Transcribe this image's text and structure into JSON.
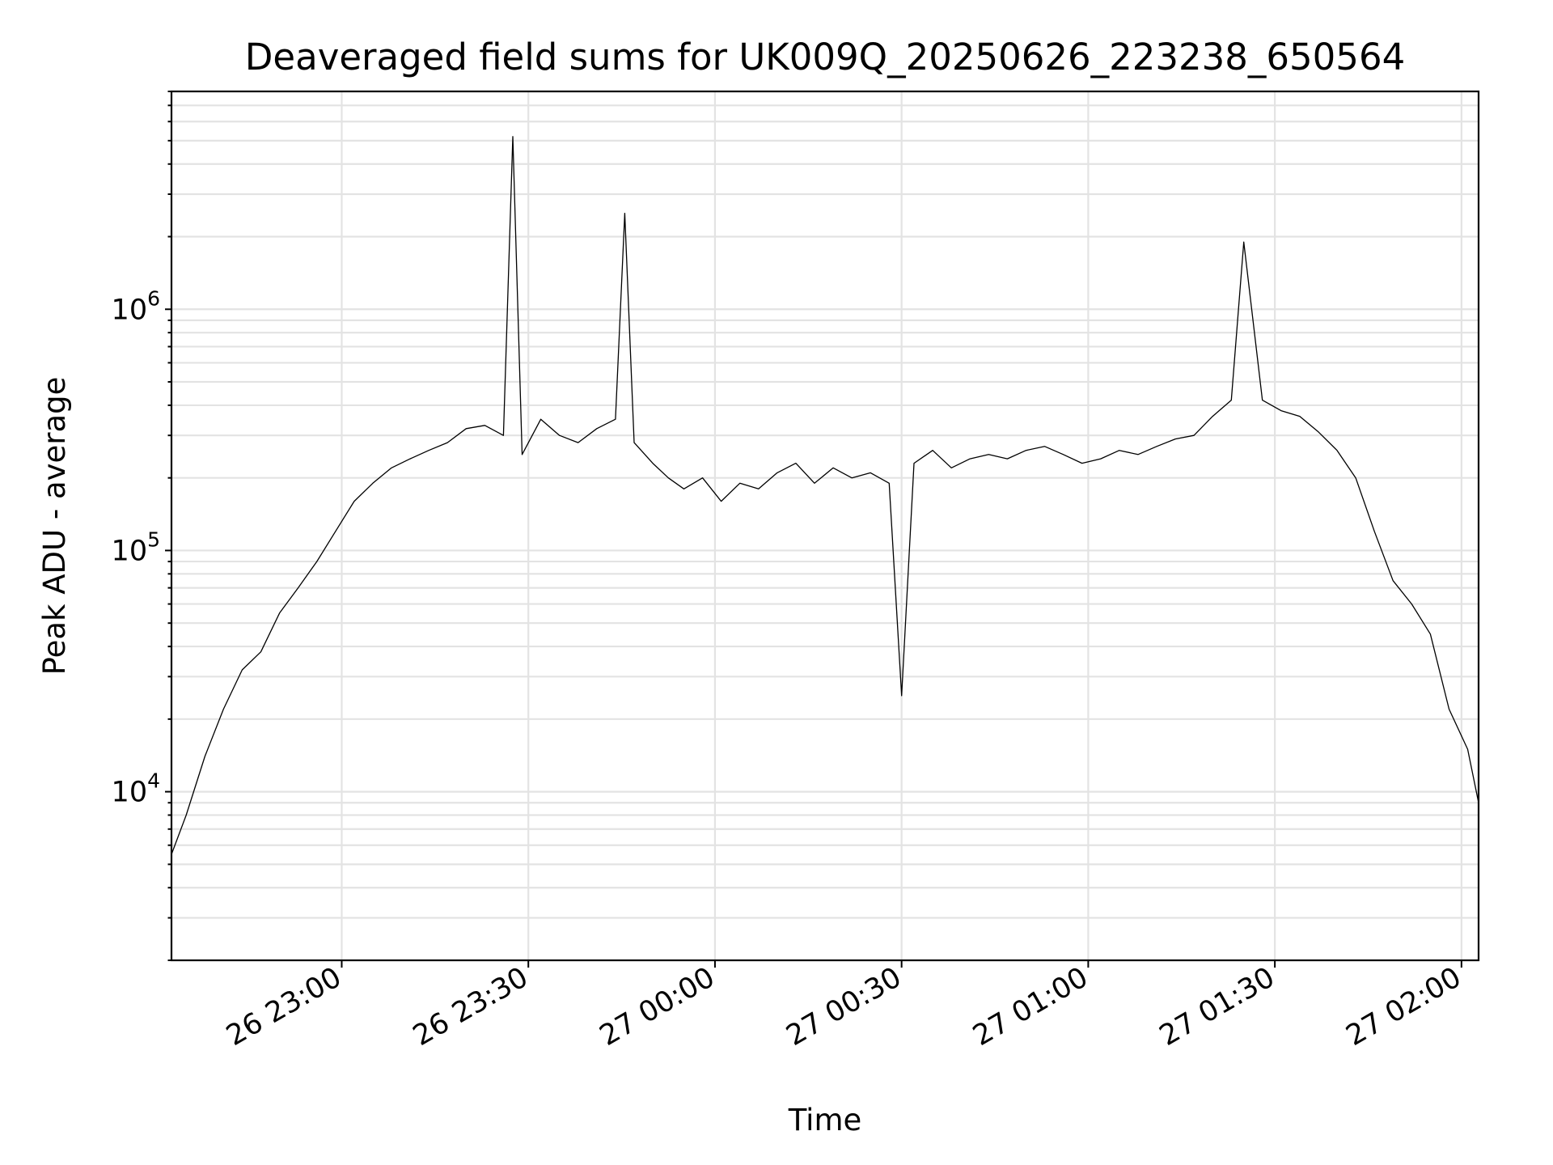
{
  "chart_data": {
    "type": "line",
    "title": "Deaveraged field sums for UK009Q_20250626_223238_650564",
    "xlabel": "Time",
    "ylabel": "Peak ADU - average",
    "xscale": "time",
    "yscale": "log",
    "xlim": [
      "2025-06-26 22:32:38",
      "2025-06-27 02:02:45"
    ],
    "ylim": [
      2000,
      8000000
    ],
    "grid": true,
    "x_ticks": [
      {
        "value": "2025-06-26 23:00",
        "label": "26 23:00"
      },
      {
        "value": "2025-06-26 23:30",
        "label": "26 23:30"
      },
      {
        "value": "2025-06-27 00:00",
        "label": "27 00:00"
      },
      {
        "value": "2025-06-27 00:30",
        "label": "27 00:30"
      },
      {
        "value": "2025-06-27 01:00",
        "label": "27 01:00"
      },
      {
        "value": "2025-06-27 01:30",
        "label": "27 01:30"
      },
      {
        "value": "2025-06-27 02:00",
        "label": "27 02:00"
      }
    ],
    "y_ticks": [
      {
        "value": 10000,
        "base": "10",
        "exp": "4"
      },
      {
        "value": 100000,
        "base": "10",
        "exp": "5"
      },
      {
        "value": 1000000,
        "base": "10",
        "exp": "6"
      }
    ],
    "series_color": "#000000",
    "series": [
      {
        "x": [
          "2025-06-26 22:32:38",
          "2025-06-26 22:35:00",
          "2025-06-26 22:38:00",
          "2025-06-26 22:41:00",
          "2025-06-26 22:44:00",
          "2025-06-26 22:47:00",
          "2025-06-26 22:50:00",
          "2025-06-26 22:53:00",
          "2025-06-26 22:56:00",
          "2025-06-26 22:59:00",
          "2025-06-26 23:02:00",
          "2025-06-26 23:05:00",
          "2025-06-26 23:08:00",
          "2025-06-26 23:11:00",
          "2025-06-26 23:14:00",
          "2025-06-26 23:17:00",
          "2025-06-26 23:20:00",
          "2025-06-26 23:23:00",
          "2025-06-26 23:26:00",
          "2025-06-26 23:27:30",
          "2025-06-26 23:29:00",
          "2025-06-26 23:32:00",
          "2025-06-26 23:35:00",
          "2025-06-26 23:38:00",
          "2025-06-26 23:41:00",
          "2025-06-26 23:44:00",
          "2025-06-26 23:45:30",
          "2025-06-26 23:47:00",
          "2025-06-26 23:50:00",
          "2025-06-26 23:52:30",
          "2025-06-26 23:55:00",
          "2025-06-26 23:58:00",
          "2025-06-27 00:01:00",
          "2025-06-27 00:04:00",
          "2025-06-27 00:07:00",
          "2025-06-27 00:10:00",
          "2025-06-27 00:13:00",
          "2025-06-27 00:16:00",
          "2025-06-27 00:19:00",
          "2025-06-27 00:22:00",
          "2025-06-27 00:25:00",
          "2025-06-27 00:28:00",
          "2025-06-27 00:30:00",
          "2025-06-27 00:32:00",
          "2025-06-27 00:35:00",
          "2025-06-27 00:38:00",
          "2025-06-27 00:41:00",
          "2025-06-27 00:44:00",
          "2025-06-27 00:47:00",
          "2025-06-27 00:50:00",
          "2025-06-27 00:53:00",
          "2025-06-27 00:56:00",
          "2025-06-27 00:59:00",
          "2025-06-27 01:02:00",
          "2025-06-27 01:05:00",
          "2025-06-27 01:08:00",
          "2025-06-27 01:11:00",
          "2025-06-27 01:14:00",
          "2025-06-27 01:17:00",
          "2025-06-27 01:20:00",
          "2025-06-27 01:23:00",
          "2025-06-27 01:25:00",
          "2025-06-27 01:28:00",
          "2025-06-27 01:31:00",
          "2025-06-27 01:34:00",
          "2025-06-27 01:37:00",
          "2025-06-27 01:40:00",
          "2025-06-27 01:43:00",
          "2025-06-27 01:46:00",
          "2025-06-27 01:49:00",
          "2025-06-27 01:52:00",
          "2025-06-27 01:55:00",
          "2025-06-27 01:58:00",
          "2025-06-27 02:01:00",
          "2025-06-27 02:02:45"
        ],
        "y": [
          5500,
          8000,
          14000,
          22000,
          32000,
          38000,
          55000,
          70000,
          90000,
          120000,
          160000,
          190000,
          220000,
          240000,
          260000,
          280000,
          320000,
          330000,
          300000,
          5200000,
          250000,
          350000,
          300000,
          280000,
          320000,
          350000,
          2500000,
          280000,
          230000,
          200000,
          180000,
          200000,
          160000,
          190000,
          180000,
          210000,
          230000,
          190000,
          220000,
          200000,
          210000,
          190000,
          25000,
          230000,
          260000,
          220000,
          240000,
          250000,
          240000,
          260000,
          270000,
          250000,
          230000,
          240000,
          260000,
          250000,
          270000,
          290000,
          300000,
          360000,
          420000,
          1900000,
          420000,
          380000,
          360000,
          310000,
          260000,
          200000,
          120000,
          75000,
          60000,
          45000,
          22000,
          15000,
          9000
        ],
        "values": [
          5500,
          8000,
          14000,
          22000,
          32000,
          38000,
          55000,
          70000,
          90000,
          120000,
          160000,
          190000,
          220000,
          240000,
          260000,
          280000,
          320000,
          330000,
          300000,
          5200000,
          250000,
          350000,
          300000,
          280000,
          320000,
          350000,
          2500000,
          280000,
          230000,
          200000,
          180000,
          200000,
          160000,
          190000,
          180000,
          210000,
          230000,
          190000,
          220000,
          200000,
          210000,
          190000,
          25000,
          230000,
          260000,
          220000,
          240000,
          250000,
          240000,
          260000,
          270000,
          250000,
          230000,
          240000,
          260000,
          250000,
          270000,
          290000,
          300000,
          360000,
          420000,
          1900000,
          420000,
          380000,
          360000,
          310000,
          260000,
          200000,
          120000,
          75000,
          60000,
          45000,
          22000,
          15000,
          9000
        ]
      }
    ]
  }
}
